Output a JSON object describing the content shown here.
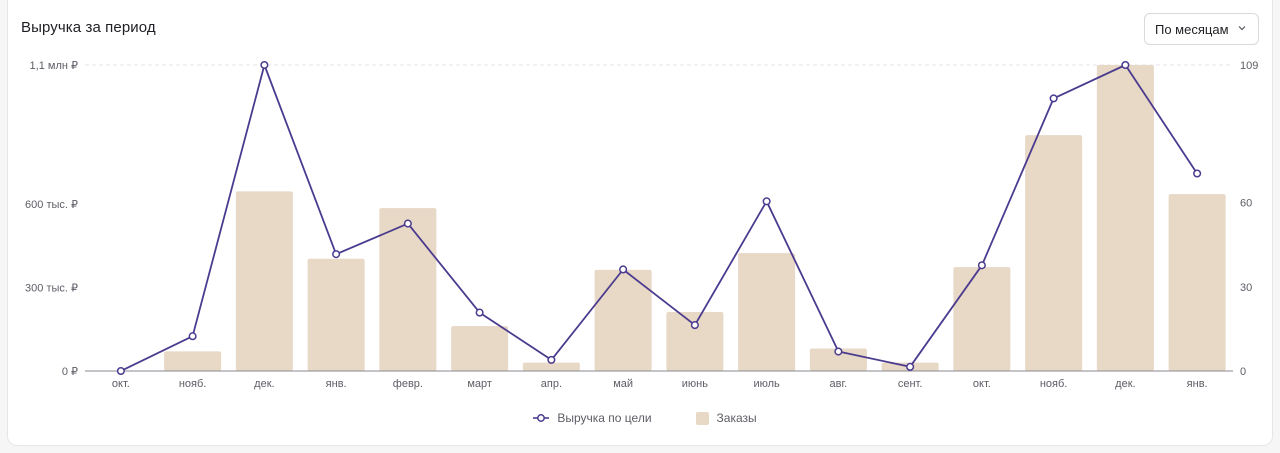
{
  "title": "Выручка за период",
  "period_select": {
    "value": "По месяцам"
  },
  "colors": {
    "line": "#4b3b8f",
    "bar": "#e8d8c6",
    "grid": "#e4e4e8",
    "axis": "#888890"
  },
  "chart_data": {
    "type": "bar",
    "categories": [
      "окт.",
      "нояб.",
      "дек.",
      "янв.",
      "февр.",
      "март",
      "апр.",
      "май",
      "июнь",
      "июль",
      "авг.",
      "сент.",
      "окт.",
      "нояб.",
      "дек.",
      "янв."
    ],
    "series": [
      {
        "name": "Выручка по цели",
        "type": "line",
        "axis": "left",
        "values": [
          0,
          125000,
          1100000,
          420000,
          530000,
          210000,
          40000,
          365000,
          165000,
          610000,
          70000,
          15000,
          380000,
          980000,
          1100000,
          710000
        ]
      },
      {
        "name": "Заказы",
        "type": "bar",
        "axis": "right",
        "values": [
          0,
          7,
          64,
          40,
          58,
          16,
          3,
          36,
          21,
          42,
          8,
          3,
          37,
          84,
          109,
          63
        ]
      }
    ],
    "y_left": {
      "ylim": [
        0,
        1100000
      ],
      "ticks": [
        0,
        300000,
        600000,
        1100000
      ],
      "tick_labels": [
        "0 ₽",
        "300 тыс. ₽",
        "600 тыс. ₽",
        "1,1 млн ₽"
      ]
    },
    "y_right": {
      "ylim": [
        0,
        109
      ],
      "ticks": [
        0,
        30,
        60,
        109
      ],
      "tick_labels": [
        "0",
        "30",
        "60",
        "109"
      ]
    },
    "grid": true,
    "legend": "bottom-center"
  }
}
